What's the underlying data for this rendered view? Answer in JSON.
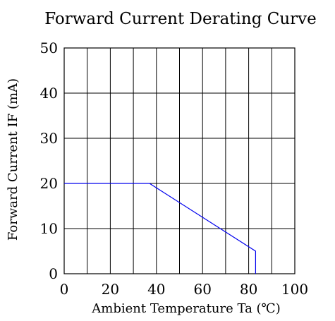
{
  "chart_data": {
    "type": "line",
    "title": "Forward Current Derating Curve",
    "xlabel": "Ambient Temperature Ta (℃)",
    "ylabel": "Forward Current IF (mA)",
    "xlim": [
      0,
      100
    ],
    "ylim": [
      0,
      50
    ],
    "x_ticks": [
      0,
      20,
      40,
      60,
      80,
      100
    ],
    "y_ticks": [
      0,
      10,
      20,
      30,
      40,
      50
    ],
    "x_tick_labels": [
      "0",
      "20",
      "40",
      "60",
      "80",
      "100"
    ],
    "y_tick_labels": [
      "0",
      "10",
      "20",
      "30",
      "40",
      "50"
    ],
    "grid": true,
    "series": [
      {
        "x": [
          0,
          37,
          83,
          83
        ],
        "y": [
          20,
          20,
          5,
          0
        ]
      }
    ],
    "colors": {
      "line": "#0000ee",
      "grid": "#000000",
      "axes": "#000000"
    }
  }
}
